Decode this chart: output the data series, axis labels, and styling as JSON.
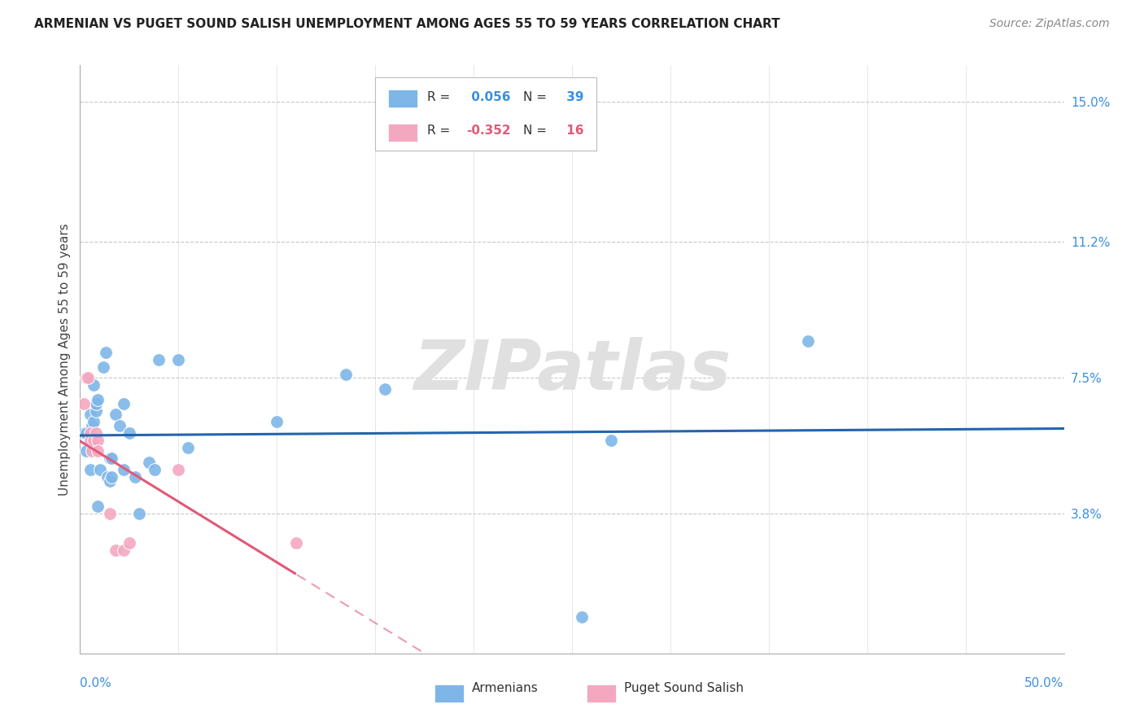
{
  "title": "ARMENIAN VS PUGET SOUND SALISH UNEMPLOYMENT AMONG AGES 55 TO 59 YEARS CORRELATION CHART",
  "source": "Source: ZipAtlas.com",
  "ylabel": "Unemployment Among Ages 55 to 59 years",
  "xlim": [
    0.0,
    50.0
  ],
  "ylim": [
    0.0,
    16.0
  ],
  "yticks": [
    3.8,
    7.5,
    11.2,
    15.0
  ],
  "ytick_labels": [
    "3.8%",
    "7.5%",
    "11.2%",
    "15.0%"
  ],
  "xtick_labels": [
    "0.0%",
    "50.0%"
  ],
  "armenian_R": 0.056,
  "armenian_N": 39,
  "salish_R": -0.352,
  "salish_N": 16,
  "armenian_color": "#7EB6E8",
  "salish_color": "#F4A8C0",
  "armenian_line_color": "#2464AE",
  "salish_line_color": "#E05A78",
  "legend_label_1": "Armenians",
  "legend_label_2": "Puget Sound Salish",
  "armenian_x": [
    0.2,
    0.3,
    0.3,
    0.5,
    0.5,
    0.6,
    0.6,
    0.7,
    0.7,
    0.8,
    0.8,
    0.9,
    0.9,
    1.0,
    1.2,
    1.3,
    1.4,
    1.5,
    1.5,
    1.6,
    1.6,
    1.8,
    2.0,
    2.2,
    2.2,
    2.5,
    2.8,
    3.0,
    3.5,
    3.8,
    4.0,
    5.0,
    5.5,
    10.0,
    13.5,
    15.5,
    27.0,
    37.0,
    25.5
  ],
  "armenian_y": [
    6.0,
    5.5,
    6.0,
    6.5,
    5.0,
    6.2,
    5.7,
    6.3,
    7.3,
    6.6,
    6.8,
    6.9,
    4.0,
    5.0,
    7.8,
    8.2,
    4.8,
    4.7,
    5.3,
    4.8,
    5.3,
    6.5,
    6.2,
    6.8,
    5.0,
    6.0,
    4.8,
    3.8,
    5.2,
    5.0,
    8.0,
    8.0,
    5.6,
    6.3,
    7.6,
    7.2,
    5.8,
    8.5,
    1.0
  ],
  "salish_x": [
    0.2,
    0.3,
    0.4,
    0.5,
    0.5,
    0.6,
    0.7,
    0.8,
    0.9,
    0.9,
    1.5,
    1.8,
    2.2,
    2.5,
    5.0,
    11.0
  ],
  "salish_y": [
    6.8,
    7.5,
    7.5,
    6.0,
    5.8,
    5.5,
    5.8,
    6.0,
    5.8,
    5.5,
    3.8,
    2.8,
    2.8,
    3.0,
    5.0,
    3.0
  ],
  "background_color": "#FFFFFF",
  "grid_color": "#C8C8C8",
  "watermark_text": "ZIPatlas",
  "watermark_color": "#E0E0E0",
  "title_fontsize": 11,
  "source_fontsize": 10,
  "tick_label_fontsize": 11,
  "ylabel_fontsize": 11,
  "legend_fontsize": 11
}
